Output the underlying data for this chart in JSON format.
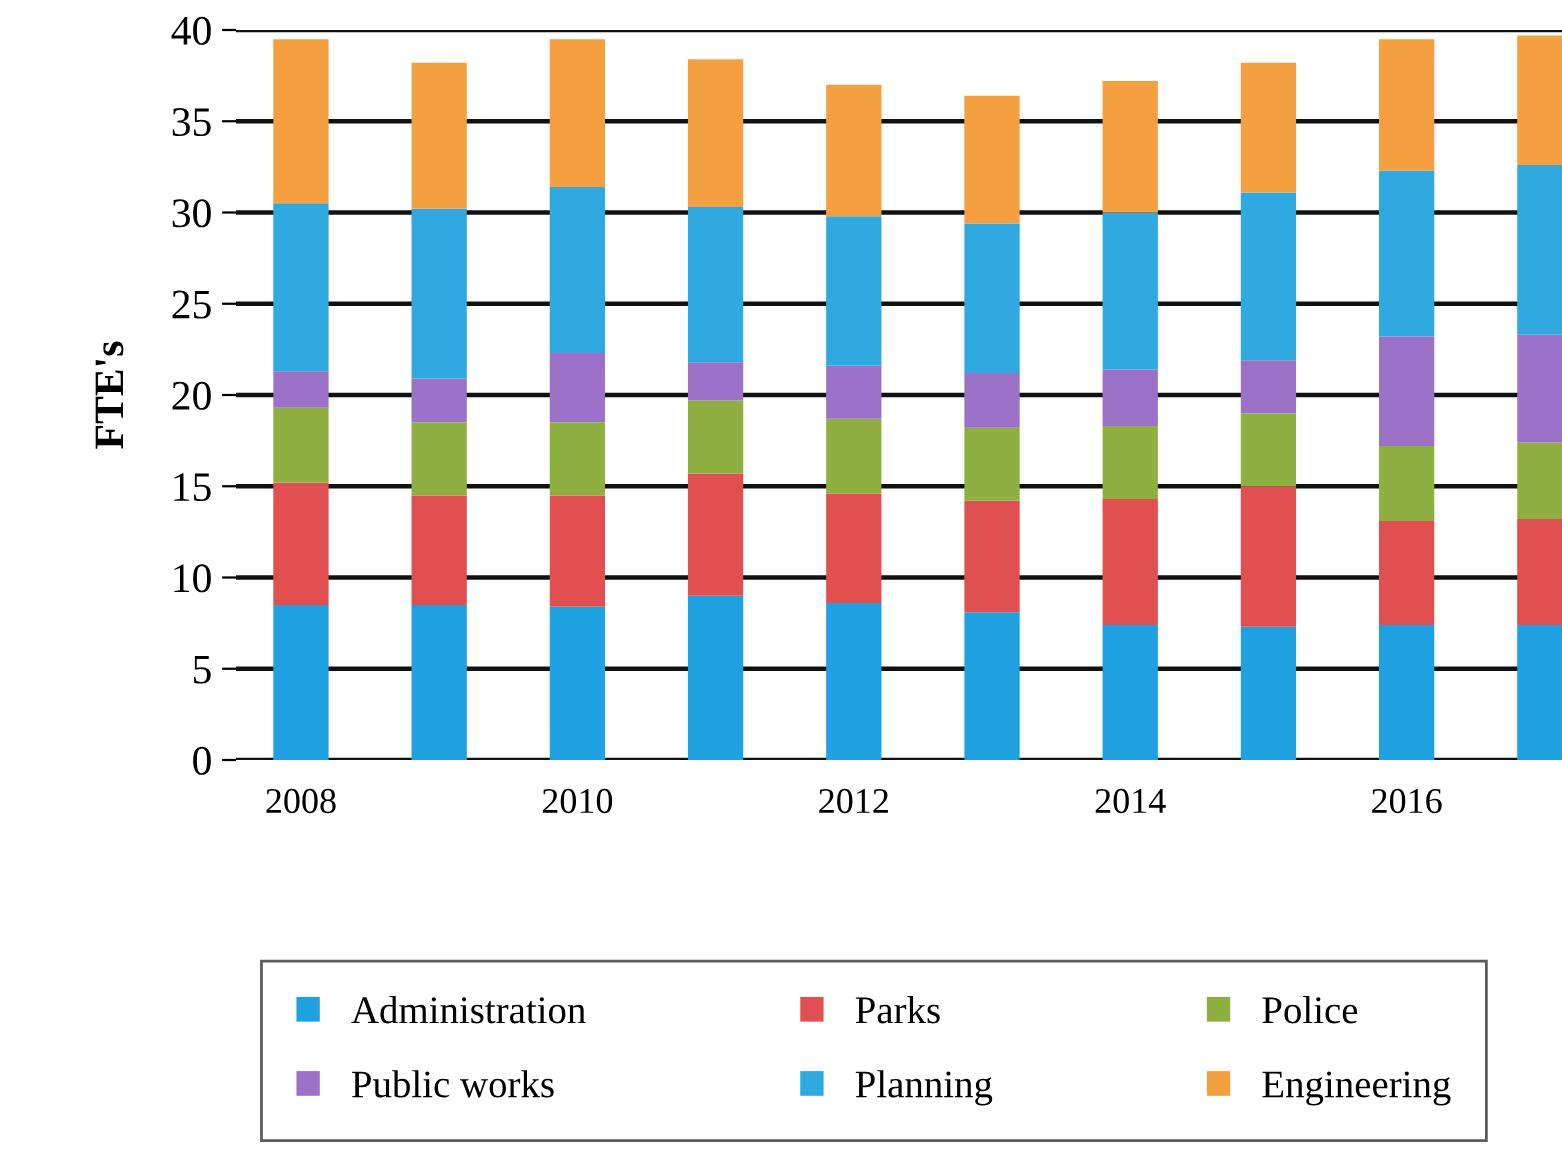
{
  "chart_data": {
    "type": "bar",
    "stacked": true,
    "ylabel": "FTE's",
    "categories": [
      "2008",
      null,
      "2010",
      null,
      "2012",
      null,
      "2014",
      null,
      "2016",
      null
    ],
    "series": [
      {
        "name": "Administration",
        "color": "#1fa0e0",
        "values": [
          8.5,
          8.5,
          8.4,
          9.0,
          8.6,
          8.1,
          7.4,
          7.3,
          7.4,
          7.4
        ]
      },
      {
        "name": "Parks",
        "color": "#e05050",
        "values": [
          6.7,
          6.0,
          6.1,
          6.7,
          6.0,
          6.1,
          6.9,
          7.7,
          5.7,
          5.8
        ]
      },
      {
        "name": "Police",
        "color": "#8fb040",
        "values": [
          4.1,
          4.0,
          4.0,
          4.0,
          4.1,
          4.0,
          4.0,
          4.0,
          4.1,
          4.2
        ]
      },
      {
        "name": "Public works",
        "color": "#9b72c8",
        "values": [
          2.0,
          2.4,
          3.8,
          2.1,
          2.9,
          3.0,
          3.1,
          2.9,
          6.0,
          5.9
        ]
      },
      {
        "name": "Planning",
        "color": "#30a8e0",
        "values": [
          9.2,
          9.3,
          9.1,
          8.5,
          8.2,
          8.2,
          8.6,
          9.2,
          9.1,
          9.3
        ]
      },
      {
        "name": "Engineering",
        "color": "#f5a040",
        "values": [
          9.0,
          8.0,
          8.1,
          8.1,
          7.2,
          7.0,
          7.2,
          7.1,
          7.2,
          7.1
        ]
      }
    ],
    "ylim": [
      0,
      40
    ],
    "yticks": [
      0,
      5,
      10,
      15,
      20,
      25,
      30,
      35,
      40
    ],
    "grid": "y",
    "legend": "bottom"
  }
}
